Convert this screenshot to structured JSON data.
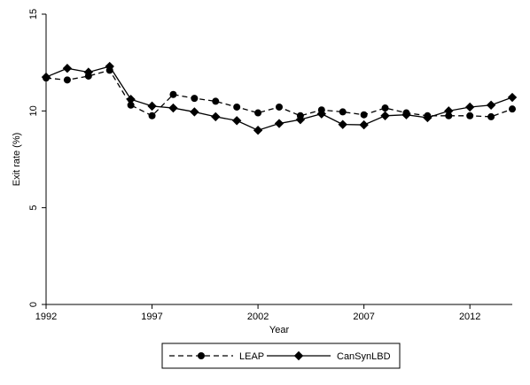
{
  "chart_data": {
    "type": "line",
    "title": "",
    "xlabel": "Year",
    "ylabel": "Exit rate (%)",
    "xlim": [
      1992,
      2014
    ],
    "ylim": [
      0,
      15
    ],
    "x_ticks": [
      1992,
      1997,
      2002,
      2007,
      2012
    ],
    "y_ticks": [
      0,
      5,
      10,
      15
    ],
    "grid": false,
    "legend_position": "bottom",
    "x": [
      1992,
      1993,
      1994,
      1995,
      1996,
      1997,
      1998,
      1999,
      2000,
      2001,
      2002,
      2003,
      2004,
      2005,
      2006,
      2007,
      2008,
      2009,
      2010,
      2011,
      2012,
      2013,
      2014
    ],
    "series": [
      {
        "name": "LEAP",
        "line_style": "dashed",
        "marker": "circle",
        "color": "#000000",
        "values": [
          11.7,
          11.6,
          11.8,
          12.1,
          10.3,
          9.75,
          10.85,
          10.65,
          10.5,
          10.2,
          9.9,
          10.2,
          9.75,
          10.05,
          9.95,
          9.8,
          10.15,
          9.9,
          9.75,
          9.75,
          9.75,
          9.7,
          10.1
        ]
      },
      {
        "name": "CanSynLBD",
        "line_style": "solid",
        "marker": "diamond",
        "color": "#000000",
        "values": [
          11.75,
          12.2,
          12.0,
          12.3,
          10.6,
          10.25,
          10.15,
          9.95,
          9.7,
          9.5,
          9.0,
          9.35,
          9.55,
          9.85,
          9.3,
          9.28,
          9.75,
          9.8,
          9.65,
          10.0,
          10.2,
          10.3,
          10.7
        ]
      }
    ]
  }
}
